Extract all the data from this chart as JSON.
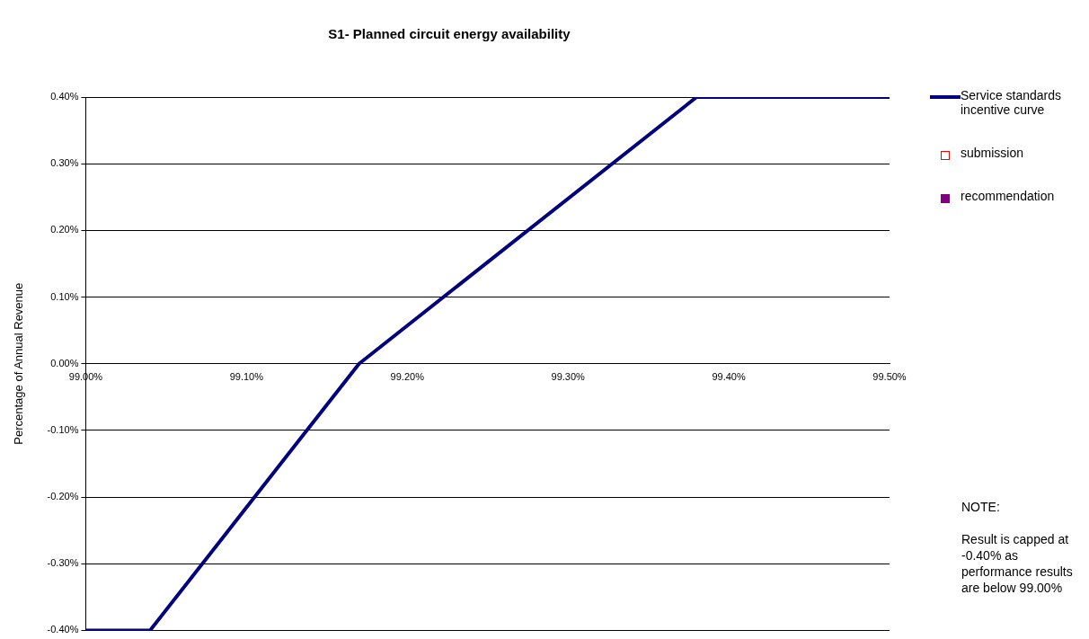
{
  "chart_data": {
    "type": "line",
    "title": "S1- Planned circuit energy availability",
    "ylabel": "Percentage of Annual Revenue",
    "series": [
      {
        "name": "Service standards incentive curve",
        "color": "#000080",
        "x": [
          99.0,
          99.04,
          99.17,
          99.38,
          99.5
        ],
        "values": [
          -0.4,
          -0.4,
          0.0,
          0.4,
          0.4
        ],
        "marker": "none"
      },
      {
        "name": "submission",
        "type": "scatter",
        "color": "#ff0000",
        "marker": "square"
      },
      {
        "name": "recommendation",
        "type": "scatter",
        "color": "#800080",
        "marker": "square"
      }
    ],
    "xlim": [
      99.0,
      99.5
    ],
    "xticks": [
      {
        "value": 99.0,
        "label": "99.00%"
      },
      {
        "value": 99.1,
        "label": "99.10%"
      },
      {
        "value": 99.2,
        "label": "99.20%"
      },
      {
        "value": 99.3,
        "label": "99.30%"
      },
      {
        "value": 99.4,
        "label": "99.40%"
      },
      {
        "value": 99.5,
        "label": "99.50%"
      }
    ],
    "ylim": [
      -0.4,
      0.4
    ],
    "yticks": [
      {
        "value": -0.4,
        "label": "-0.40%"
      },
      {
        "value": -0.3,
        "label": "-0.30%"
      },
      {
        "value": -0.2,
        "label": "-0.20%"
      },
      {
        "value": -0.1,
        "label": "-0.10%"
      },
      {
        "value": 0,
        "label": "0.00%"
      },
      {
        "value": 0.1,
        "label": "0.10%"
      },
      {
        "value": 0.2,
        "label": "0.20%"
      },
      {
        "value": 0.3,
        "label": "0.30%"
      },
      {
        "value": 0.4,
        "label": "0.40%"
      }
    ],
    "grid": "y",
    "legend": "right",
    "annotations": [
      "NOTE:\n\nResult is capped at -0.40% as performance results are below 99.00%"
    ]
  }
}
